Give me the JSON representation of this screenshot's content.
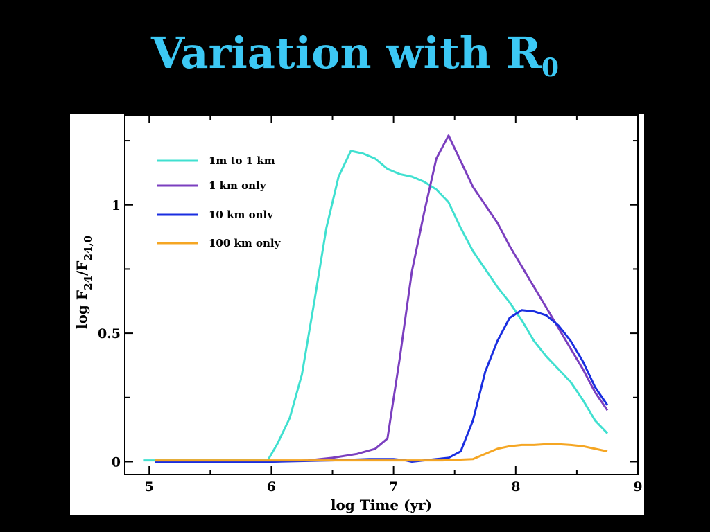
{
  "slide": {
    "title_main": "Variation with R",
    "title_sub": "0"
  },
  "chart_data": {
    "type": "line",
    "xlabel": "log Time (yr)",
    "ylabel_parts": {
      "prefix": "log F",
      "sub1": "24",
      "mid": "/F",
      "sub2": "24,0"
    },
    "xlim": [
      4.8,
      9.0
    ],
    "ylim": [
      -0.05,
      1.35
    ],
    "x_ticks": [
      5,
      6,
      7,
      8,
      9
    ],
    "x_tick_labels": [
      "5",
      "6",
      "7",
      "8",
      "9"
    ],
    "y_ticks": [
      0,
      0.5,
      1
    ],
    "y_tick_labels": [
      "0",
      "0.5",
      "1"
    ],
    "grid": false,
    "legend_position": "top-left",
    "series": [
      {
        "name": "1m to 1 km",
        "color": "#40e0d0",
        "x": [
          4.95,
          5.5,
          5.97,
          6.05,
          6.15,
          6.25,
          6.35,
          6.45,
          6.55,
          6.65,
          6.75,
          6.85,
          6.95,
          7.05,
          7.15,
          7.25,
          7.35,
          7.45,
          7.55,
          7.65,
          7.75,
          7.85,
          7.95,
          8.05,
          8.15,
          8.25,
          8.35,
          8.45,
          8.55,
          8.65,
          8.75
        ],
        "y": [
          0.005,
          0.005,
          0.005,
          0.07,
          0.17,
          0.34,
          0.62,
          0.91,
          1.11,
          1.21,
          1.2,
          1.18,
          1.14,
          1.12,
          1.11,
          1.09,
          1.06,
          1.01,
          0.91,
          0.82,
          0.75,
          0.68,
          0.62,
          0.55,
          0.47,
          0.41,
          0.36,
          0.31,
          0.24,
          0.16,
          0.11
        ]
      },
      {
        "name": "1 km only",
        "color": "#7b3fbf",
        "x": [
          5.05,
          5.5,
          6.0,
          6.3,
          6.5,
          6.7,
          6.85,
          6.95,
          7.05,
          7.15,
          7.25,
          7.35,
          7.45,
          7.55,
          7.65,
          7.75,
          7.85,
          7.95,
          8.05,
          8.15,
          8.25,
          8.35,
          8.45,
          8.55,
          8.65,
          8.75
        ],
        "y": [
          0.0,
          0.0,
          0.0,
          0.005,
          0.015,
          0.03,
          0.05,
          0.09,
          0.4,
          0.74,
          0.97,
          1.18,
          1.27,
          1.17,
          1.07,
          1.0,
          0.93,
          0.84,
          0.76,
          0.68,
          0.6,
          0.52,
          0.44,
          0.36,
          0.27,
          0.2
        ]
      },
      {
        "name": "10 km only",
        "color": "#1a2ee0",
        "x": [
          5.05,
          5.5,
          6.0,
          6.5,
          6.8,
          7.0,
          7.1,
          7.15,
          7.25,
          7.35,
          7.45,
          7.55,
          7.65,
          7.75,
          7.85,
          7.95,
          8.05,
          8.15,
          8.25,
          8.35,
          8.45,
          8.55,
          8.65,
          8.75
        ],
        "y": [
          0.0,
          0.0,
          0.0,
          0.005,
          0.01,
          0.01,
          0.005,
          0.0,
          0.005,
          0.01,
          0.015,
          0.04,
          0.16,
          0.35,
          0.47,
          0.56,
          0.59,
          0.585,
          0.57,
          0.53,
          0.47,
          0.39,
          0.29,
          0.22
        ]
      },
      {
        "name": "100 km only",
        "color": "#f5a623",
        "x": [
          5.05,
          5.5,
          6.0,
          6.5,
          7.0,
          7.4,
          7.65,
          7.75,
          7.85,
          7.95,
          8.05,
          8.15,
          8.25,
          8.35,
          8.45,
          8.55,
          8.65,
          8.75
        ],
        "y": [
          0.005,
          0.005,
          0.005,
          0.005,
          0.005,
          0.005,
          0.01,
          0.03,
          0.05,
          0.06,
          0.065,
          0.065,
          0.068,
          0.068,
          0.065,
          0.06,
          0.05,
          0.04
        ]
      }
    ]
  }
}
